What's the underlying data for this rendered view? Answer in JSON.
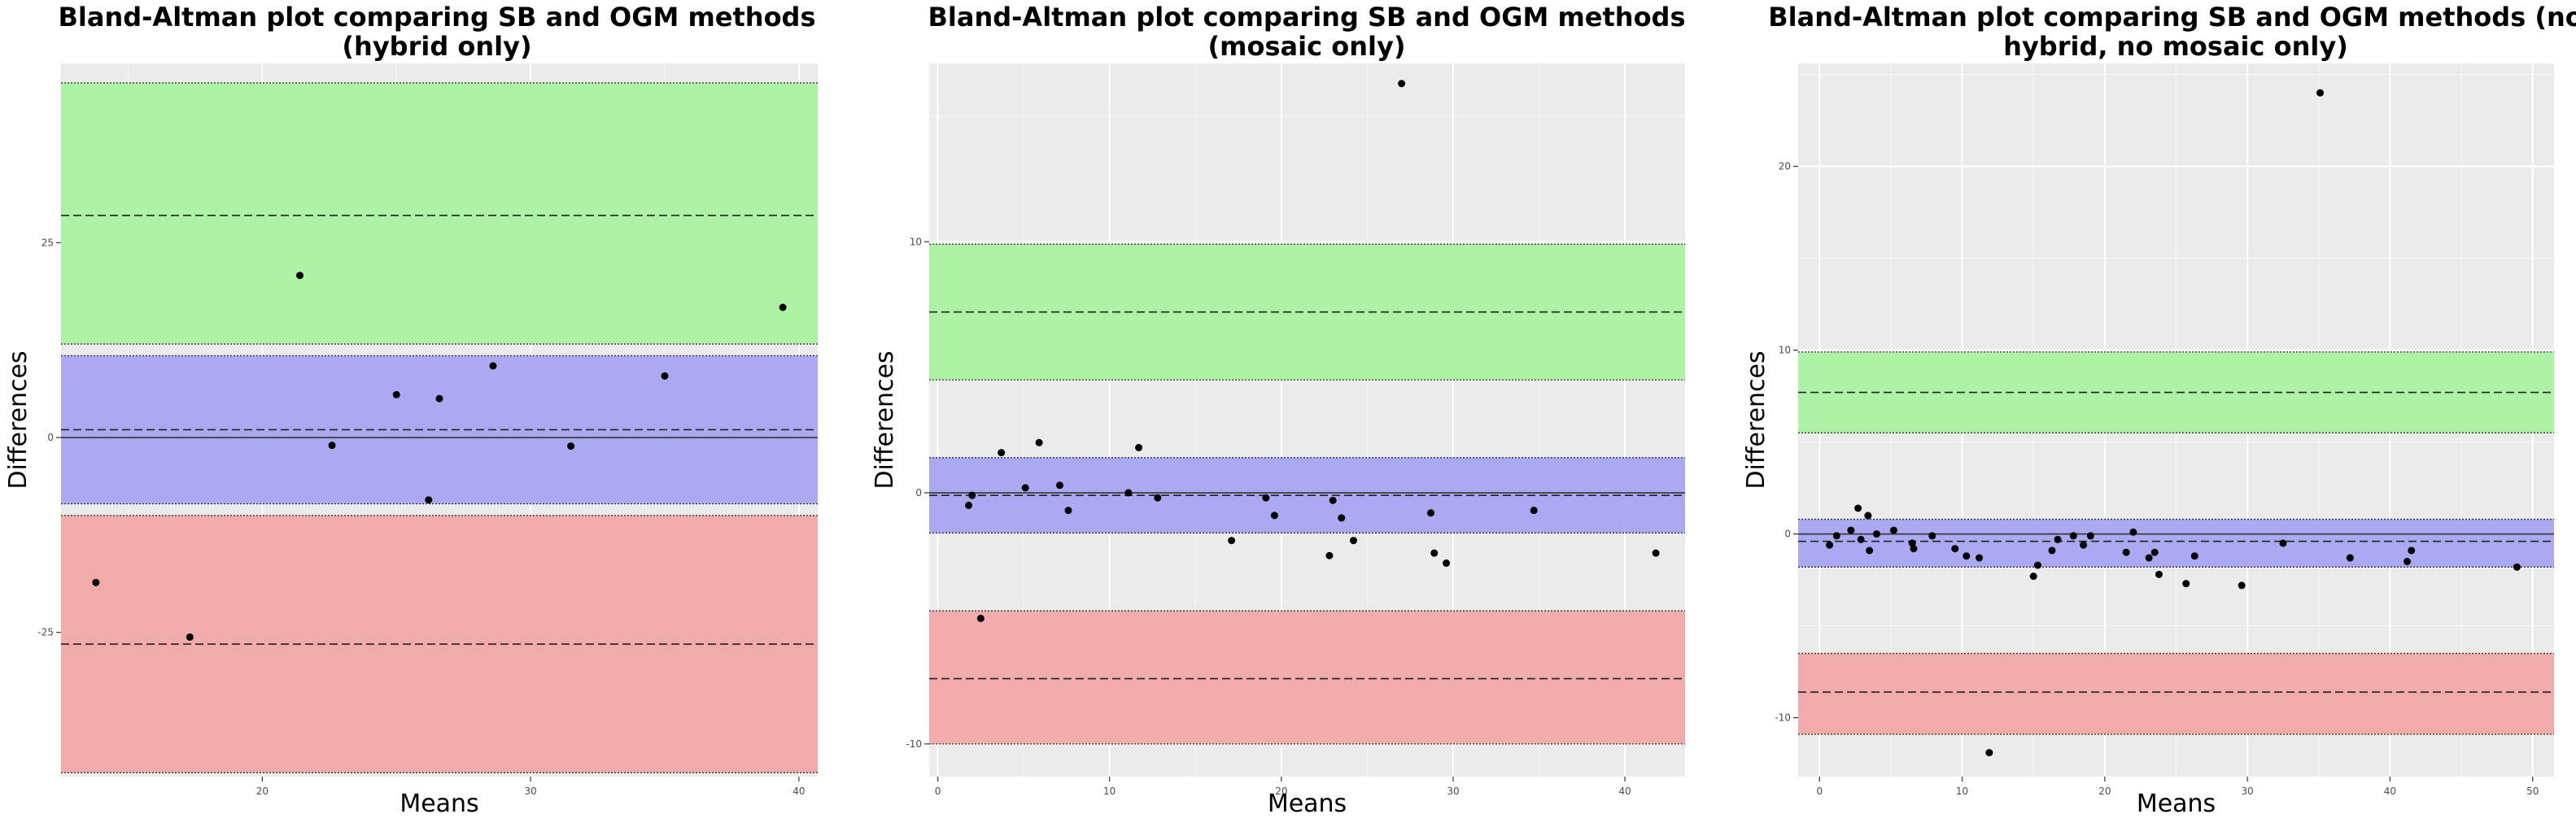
{
  "chart_data": [
    {
      "type": "scatter",
      "title_lines": [
        "Bland-Altman plot comparing SB and OGM methods",
        "(hybrid only)"
      ],
      "xlabel": "Means",
      "ylabel": "Differences",
      "xlim": [
        12.5,
        40.7
      ],
      "ylim": [
        -43.5,
        48
      ],
      "xticks": [
        20,
        30,
        40
      ],
      "yticks": [
        -25,
        0,
        25
      ],
      "grid": true,
      "bands": [
        {
          "name": "upper",
          "color": "#a8f2a0",
          "ymin": 12,
          "ymax": 45.5,
          "line": 28.5
        },
        {
          "name": "mean",
          "color": "#a4a3f1",
          "ymin": -8.5,
          "ymax": 10.5,
          "line": 1
        },
        {
          "name": "lower",
          "color": "#f1a5a5",
          "ymin": -43,
          "ymax": -10,
          "line": -26.5
        }
      ],
      "mean_solid_line": 0,
      "points": [
        {
          "x": 13.8,
          "y": -18.6
        },
        {
          "x": 17.3,
          "y": -25.6
        },
        {
          "x": 21.4,
          "y": 20.8
        },
        {
          "x": 22.6,
          "y": -1
        },
        {
          "x": 25,
          "y": 5.5
        },
        {
          "x": 26.2,
          "y": -8
        },
        {
          "x": 26.6,
          "y": 5
        },
        {
          "x": 28.6,
          "y": 9.2
        },
        {
          "x": 31.5,
          "y": -1.1
        },
        {
          "x": 35,
          "y": 7.9
        },
        {
          "x": 39.4,
          "y": 16.7
        }
      ]
    },
    {
      "type": "scatter",
      "title_lines": [
        "Bland-Altman plot comparing SB and OGM methods",
        "(mosaic only)"
      ],
      "xlabel": "Means",
      "ylabel": "Differences",
      "xlim": [
        -0.5,
        43.5
      ],
      "ylim": [
        -11.3,
        17.1
      ],
      "xticks": [
        0,
        10,
        20,
        30,
        40
      ],
      "yticks": [
        -10,
        0,
        10
      ],
      "grid": true,
      "bands": [
        {
          "name": "upper",
          "color": "#a8f2a0",
          "ymin": 4.5,
          "ymax": 9.9,
          "line": 7.2
        },
        {
          "name": "mean",
          "color": "#a4a3f1",
          "ymin": -1.6,
          "ymax": 1.4,
          "line": -0.1
        },
        {
          "name": "lower",
          "color": "#f1a5a5",
          "ymin": -10,
          "ymax": -4.7,
          "line": -7.4
        }
      ],
      "mean_solid_line": 0,
      "points": [
        {
          "x": 1.8,
          "y": -0.5
        },
        {
          "x": 2,
          "y": -0.1
        },
        {
          "x": 2.5,
          "y": -5
        },
        {
          "x": 3.7,
          "y": 1.6
        },
        {
          "x": 5.1,
          "y": 0.2
        },
        {
          "x": 5.9,
          "y": 2
        },
        {
          "x": 7.1,
          "y": 0.3
        },
        {
          "x": 7.6,
          "y": -0.7
        },
        {
          "x": 11.1,
          "y": 0
        },
        {
          "x": 11.7,
          "y": 1.8
        },
        {
          "x": 12.8,
          "y": -0.2
        },
        {
          "x": 17.1,
          "y": -1.9
        },
        {
          "x": 19.1,
          "y": -0.2
        },
        {
          "x": 19.6,
          "y": -0.9
        },
        {
          "x": 22.8,
          "y": -2.5
        },
        {
          "x": 23,
          "y": -0.3
        },
        {
          "x": 23.5,
          "y": -1
        },
        {
          "x": 24.2,
          "y": -1.9
        },
        {
          "x": 27,
          "y": 16.3
        },
        {
          "x": 28.7,
          "y": -0.8
        },
        {
          "x": 28.9,
          "y": -2.4
        },
        {
          "x": 29.6,
          "y": -2.8
        },
        {
          "x": 34.7,
          "y": -0.7
        },
        {
          "x": 41.8,
          "y": -2.4
        }
      ]
    },
    {
      "type": "scatter",
      "title_lines": [
        "Bland-Altman plot comparing SB and OGM methods (no",
        "hybrid, no mosaic only)"
      ],
      "xlabel": "Means",
      "ylabel": "Differences",
      "xlim": [
        -1.5,
        51.5
      ],
      "ylim": [
        -13.2,
        25.6
      ],
      "xticks": [
        0,
        10,
        20,
        30,
        40,
        50
      ],
      "yticks": [
        -10,
        0,
        10,
        20
      ],
      "grid": true,
      "bands": [
        {
          "name": "upper",
          "color": "#a8f2a0",
          "ymin": 5.5,
          "ymax": 9.9,
          "line": 7.7
        },
        {
          "name": "mean",
          "color": "#a4a3f1",
          "ymin": -1.8,
          "ymax": 0.8,
          "line": -0.4
        },
        {
          "name": "lower",
          "color": "#f1a5a5",
          "ymin": -10.9,
          "ymax": -6.5,
          "line": -8.6
        }
      ],
      "mean_solid_line": 0,
      "points": [
        {
          "x": 0.7,
          "y": -0.6
        },
        {
          "x": 1.2,
          "y": -0.1
        },
        {
          "x": 2.2,
          "y": 0.2
        },
        {
          "x": 2.7,
          "y": 1.4
        },
        {
          "x": 2.9,
          "y": -0.3
        },
        {
          "x": 3.4,
          "y": 1
        },
        {
          "x": 3.5,
          "y": -0.9
        },
        {
          "x": 4,
          "y": 0
        },
        {
          "x": 5.2,
          "y": 0.2
        },
        {
          "x": 6.5,
          "y": -0.5
        },
        {
          "x": 6.6,
          "y": -0.8
        },
        {
          "x": 7.9,
          "y": -0.1
        },
        {
          "x": 9.5,
          "y": -0.8
        },
        {
          "x": 10.3,
          "y": -1.2
        },
        {
          "x": 11.2,
          "y": -1.3
        },
        {
          "x": 11.9,
          "y": -11.9
        },
        {
          "x": 15,
          "y": -2.3
        },
        {
          "x": 15.3,
          "y": -1.7
        },
        {
          "x": 16.3,
          "y": -0.9
        },
        {
          "x": 16.7,
          "y": -0.3
        },
        {
          "x": 17.8,
          "y": -0.1
        },
        {
          "x": 18.5,
          "y": -0.6
        },
        {
          "x": 19,
          "y": -0.1
        },
        {
          "x": 21.5,
          "y": -1
        },
        {
          "x": 22,
          "y": 0.1
        },
        {
          "x": 23.1,
          "y": -1.3
        },
        {
          "x": 23.5,
          "y": -1
        },
        {
          "x": 23.8,
          "y": -2.2
        },
        {
          "x": 25.7,
          "y": -2.7
        },
        {
          "x": 26.3,
          "y": -1.2
        },
        {
          "x": 29.6,
          "y": -2.8
        },
        {
          "x": 32.5,
          "y": -0.5
        },
        {
          "x": 35.1,
          "y": 24
        },
        {
          "x": 37.2,
          "y": -1.3
        },
        {
          "x": 41.2,
          "y": -1.5
        },
        {
          "x": 41.5,
          "y": -0.9
        },
        {
          "x": 48.9,
          "y": -1.8
        }
      ]
    }
  ]
}
